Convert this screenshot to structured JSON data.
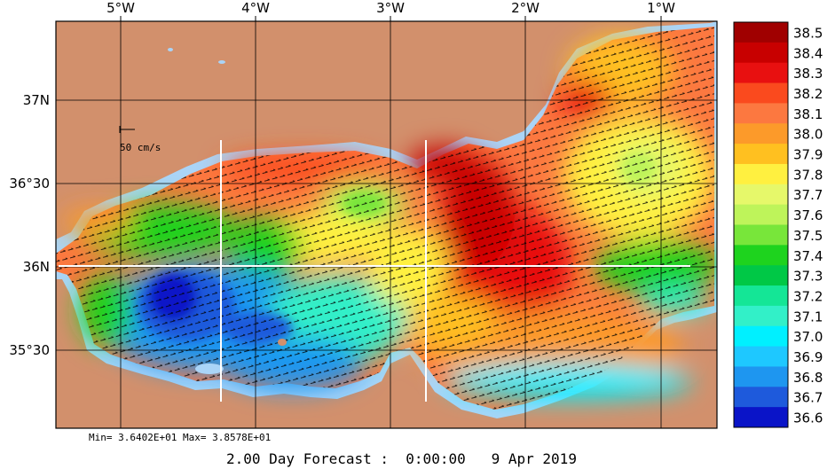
{
  "map": {
    "lon_labels": [
      "5°W",
      "4°W",
      "3°W",
      "2°W",
      "1°W"
    ],
    "lat_labels": [
      "37N",
      "36°30",
      "36N",
      "35°30"
    ],
    "scale_label": "50 cm/s",
    "colors": {
      "land": "#d2906c",
      "shelf": "#aad4f7",
      "grid": "#000000",
      "section_lines": "#ffffff"
    }
  },
  "colorbar": {
    "levels": [
      {
        "label": "38.5",
        "color": "#a00000"
      },
      {
        "label": "38.4",
        "color": "#c80000"
      },
      {
        "label": "38.3",
        "color": "#e81010"
      },
      {
        "label": "38.2",
        "color": "#fa4a1e"
      },
      {
        "label": "38.1",
        "color": "#fc7840"
      },
      {
        "label": "38.0",
        "color": "#fc9a2a"
      },
      {
        "label": "37.9",
        "color": "#ffc020"
      },
      {
        "label": "37.8",
        "color": "#fff040"
      },
      {
        "label": "37.7",
        "color": "#e6f86a"
      },
      {
        "label": "37.6",
        "color": "#bef45a"
      },
      {
        "label": "37.5",
        "color": "#78e63a"
      },
      {
        "label": "37.4",
        "color": "#1ed31e"
      },
      {
        "label": "37.3",
        "color": "#00c846"
      },
      {
        "label": "37.2",
        "color": "#14e696"
      },
      {
        "label": "37.1",
        "color": "#32f0c8"
      },
      {
        "label": "37.0",
        "color": "#00f0ff"
      },
      {
        "label": "36.9",
        "color": "#1ec8ff"
      },
      {
        "label": "36.8",
        "color": "#1e96f0"
      },
      {
        "label": "36.7",
        "color": "#1e5adc"
      },
      {
        "label": "36.6",
        "color": "#0a14c8"
      }
    ]
  },
  "footer": {
    "minmax": "Min= 3.6402E+01  Max= 3.8578E+01",
    "forecast": "2.00 Day Forecast :  0:00:00   9 Apr 2019"
  }
}
